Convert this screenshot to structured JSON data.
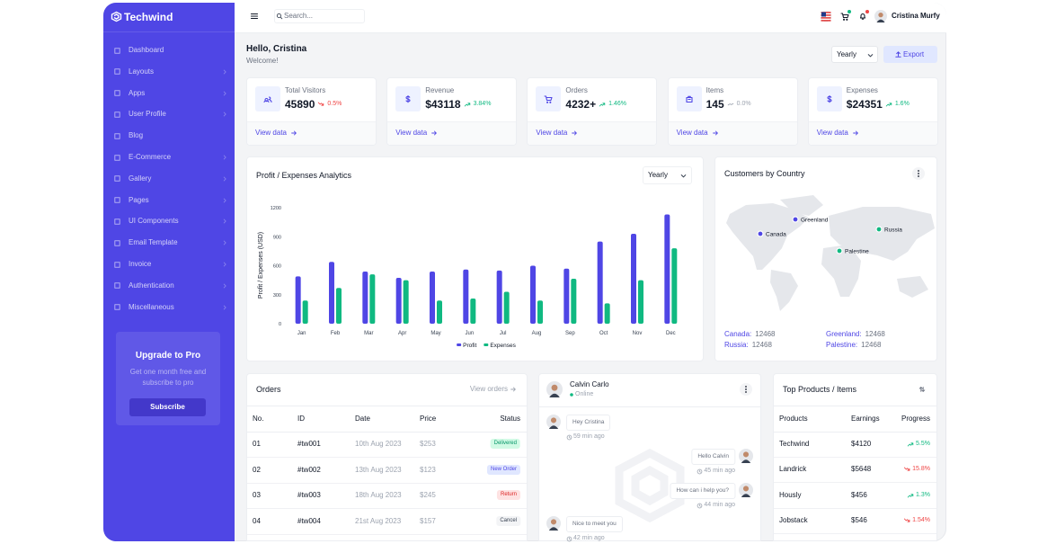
{
  "brand": "Techwind",
  "sidebar": {
    "menu": [
      {
        "label": "Dashboard",
        "submenu": false
      },
      {
        "label": "Layouts",
        "submenu": true
      },
      {
        "label": "Apps",
        "submenu": true
      },
      {
        "label": "User Profile",
        "submenu": true
      },
      {
        "label": "Blog",
        "submenu": false
      },
      {
        "label": "E-Commerce",
        "submenu": true
      },
      {
        "label": "Gallery",
        "submenu": true
      },
      {
        "label": "Pages",
        "submenu": true
      },
      {
        "label": "UI Components",
        "submenu": true
      },
      {
        "label": "Email Template",
        "submenu": true
      },
      {
        "label": "Invoice",
        "submenu": true
      },
      {
        "label": "Authentication",
        "submenu": true
      },
      {
        "label": "Miscellaneous",
        "submenu": true
      }
    ],
    "upgrade": {
      "title": "Upgrade to Pro",
      "text": "Get one month free and subscribe to pro",
      "button": "Subscribe"
    }
  },
  "header": {
    "search_placeholder": "Search...",
    "user_name": "Cristina Murfy"
  },
  "page": {
    "greeting": "Hello, Cristina",
    "subtitle": "Welcome!",
    "period": "Yearly",
    "export": "Export"
  },
  "stats": [
    {
      "label": "Total Visitors",
      "value": "45890",
      "change": "0.5%",
      "trend": "down",
      "link": "View data"
    },
    {
      "label": "Revenue",
      "value": "$43118",
      "change": "3.84%",
      "trend": "up",
      "link": "View data"
    },
    {
      "label": "Orders",
      "value": "4232+",
      "change": "1.46%",
      "trend": "up",
      "link": "View data"
    },
    {
      "label": "Items",
      "value": "145",
      "change": "0.0%",
      "trend": "flat",
      "link": "View data"
    },
    {
      "label": "Expenses",
      "value": "$24351",
      "change": "1.6%",
      "trend": "up",
      "link": "View data"
    }
  ],
  "chart_data": {
    "type": "bar",
    "title": "Profit / Expenses Analytics",
    "period": "Yearly",
    "y_label": "Profit / Expenses (USD)",
    "categories": [
      "Jan",
      "Feb",
      "Mar",
      "Apr",
      "May",
      "Jun",
      "Jul",
      "Aug",
      "Sep",
      "Oct",
      "Nov",
      "Dec"
    ],
    "series": [
      {
        "name": "Profit",
        "color": "#4f46e5",
        "values": [
          490,
          640,
          540,
          475,
          540,
          560,
          550,
          600,
          570,
          850,
          930,
          1130
        ]
      },
      {
        "name": "Expenses",
        "color": "#10b981",
        "values": [
          240,
          370,
          510,
          450,
          240,
          260,
          330,
          240,
          465,
          210,
          450,
          780
        ]
      }
    ],
    "ylim": [
      0,
      1200
    ],
    "yticks": [
      0,
      300,
      600,
      900,
      1200
    ],
    "grid": false,
    "legend": "bottom"
  },
  "customers": {
    "title": "Customers by Country",
    "markers": [
      {
        "label": "Greenland",
        "color": "#4f46e5"
      },
      {
        "label": "Canada",
        "color": "#4f46e5"
      },
      {
        "label": "Russia",
        "color": "#10b981"
      },
      {
        "label": "Palestine",
        "color": "#10b981"
      }
    ],
    "stats": [
      {
        "country": "Canada:",
        "value": "12468"
      },
      {
        "country": "Greenland:",
        "value": "12468"
      },
      {
        "country": "Russia:",
        "value": "12468"
      },
      {
        "country": "Palestine:",
        "value": "12468"
      }
    ]
  },
  "orders": {
    "title": "Orders",
    "link": "View orders",
    "columns": [
      "No.",
      "ID",
      "Date",
      "Price",
      "Status"
    ],
    "rows": [
      {
        "cells": [
          "01",
          "#tw001",
          "10th Aug 2023",
          "$253",
          "Delivered"
        ],
        "tone": "green"
      },
      {
        "cells": [
          "02",
          "#tw002",
          "13th Aug 2023",
          "$123",
          "New Order"
        ],
        "tone": "indigo"
      },
      {
        "cells": [
          "03",
          "#tw003",
          "18th Aug 2023",
          "$245",
          "Return"
        ],
        "tone": "red"
      },
      {
        "cells": [
          "04",
          "#tw004",
          "21st Aug 2023",
          "$157",
          "Cancel"
        ],
        "tone": "gray"
      }
    ]
  },
  "chat": {
    "name": "Calvin Carlo",
    "status": "Online",
    "messages": [
      {
        "text": "Hey Cristina",
        "time": "59 min ago",
        "side": "left"
      },
      {
        "text": "Hello Calvin",
        "time": "45 min ago",
        "side": "right"
      },
      {
        "text": "How can i help you?",
        "time": "44 min ago",
        "side": "right"
      },
      {
        "text": "Nice to meet you",
        "time": "42 min ago",
        "side": "left"
      }
    ]
  },
  "products": {
    "title": "Top Products / Items",
    "columns": [
      "Products",
      "Earnings",
      "Progress"
    ],
    "rows": [
      {
        "name": "Techwind",
        "earnings": "$4120",
        "change": "5.5%",
        "trend": "up"
      },
      {
        "name": "Landrick",
        "earnings": "$5648",
        "change": "15.8%",
        "trend": "down"
      },
      {
        "name": "Hously",
        "earnings": "$456",
        "change": "1.3%",
        "trend": "up"
      },
      {
        "name": "Jobstack",
        "earnings": "$546",
        "change": "1.54%",
        "trend": "down"
      }
    ]
  }
}
